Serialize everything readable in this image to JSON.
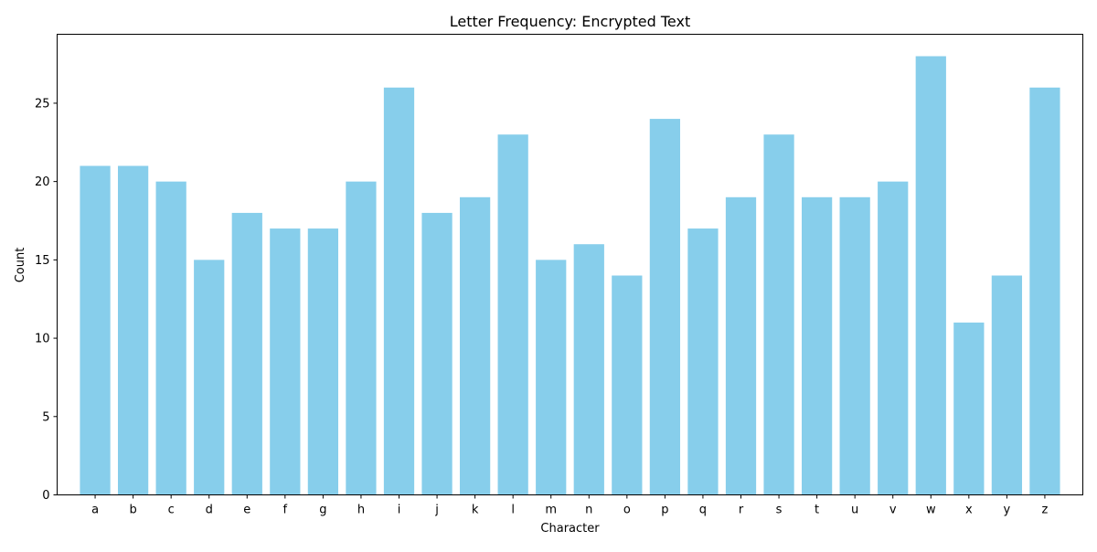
{
  "chart_data": {
    "type": "bar",
    "title": "Letter Frequency: Encrypted Text",
    "xlabel": "Character",
    "ylabel": "Count",
    "categories": [
      "a",
      "b",
      "c",
      "d",
      "e",
      "f",
      "g",
      "h",
      "i",
      "j",
      "k",
      "l",
      "m",
      "n",
      "o",
      "p",
      "q",
      "r",
      "s",
      "t",
      "u",
      "v",
      "w",
      "x",
      "y",
      "z"
    ],
    "values": [
      21,
      21,
      20,
      15,
      18,
      17,
      17,
      20,
      26,
      18,
      19,
      23,
      15,
      16,
      14,
      24,
      17,
      19,
      23,
      19,
      19,
      20,
      28,
      11,
      14,
      26
    ],
    "ylim": [
      0,
      29.4
    ],
    "yticks": [
      0,
      5,
      10,
      15,
      20,
      25
    ],
    "bar_color": "#87ceeb",
    "grid": false,
    "legend": "none"
  }
}
